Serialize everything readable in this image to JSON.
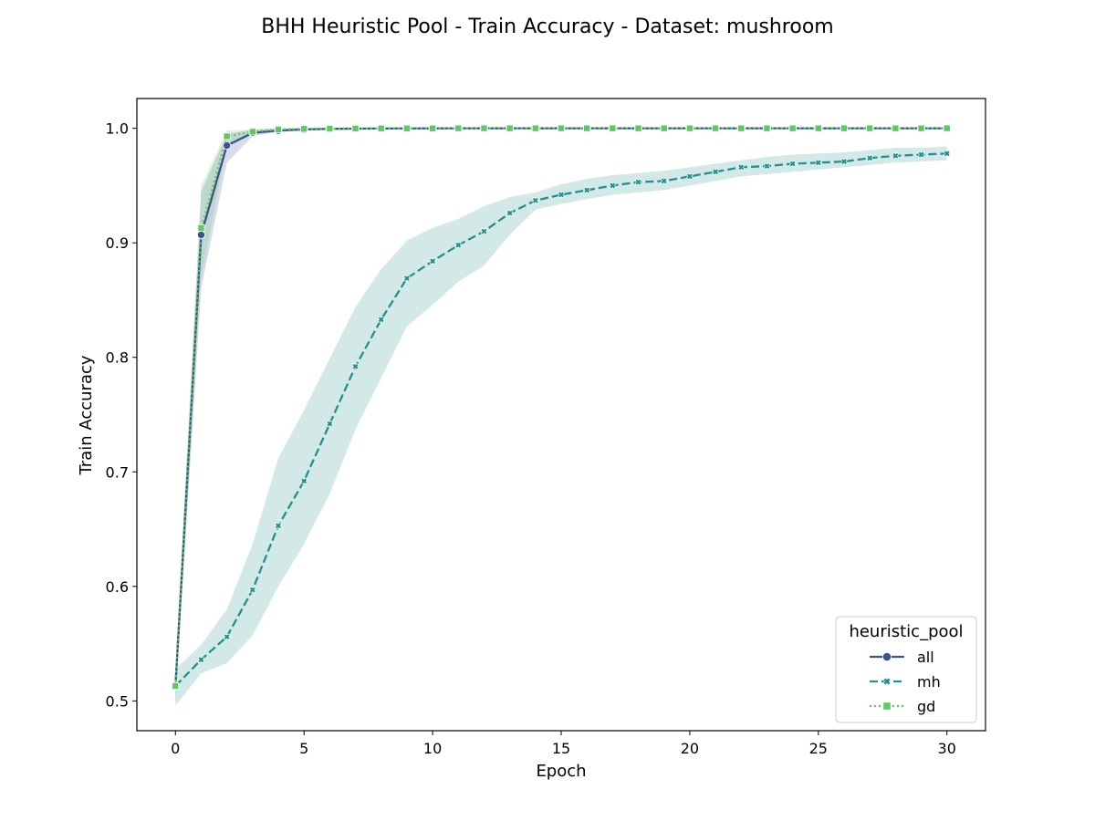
{
  "chart_data": {
    "type": "line",
    "title": "BHH Heuristic Pool - Train Accuracy - Dataset: mushroom",
    "xlabel": "Epoch",
    "ylabel": "Train Accuracy",
    "xlim": [
      -1.5,
      31.5
    ],
    "ylim": [
      0.474,
      1.026
    ],
    "xticks": [
      0,
      5,
      10,
      15,
      20,
      25,
      30
    ],
    "xtick_labels": [
      "0",
      "5",
      "10",
      "15",
      "20",
      "25",
      "30"
    ],
    "yticks": [
      0.5,
      0.6,
      0.7,
      0.8,
      0.9,
      1.0
    ],
    "ytick_labels": [
      "0.5",
      "0.6",
      "0.7",
      "0.8",
      "0.9",
      "1.0"
    ],
    "grid": false,
    "legend": {
      "title": "heuristic_pool",
      "position": "bottom-right"
    },
    "x": [
      0,
      1,
      2,
      3,
      4,
      5,
      6,
      7,
      8,
      9,
      10,
      11,
      12,
      13,
      14,
      15,
      16,
      17,
      18,
      19,
      20,
      21,
      22,
      23,
      24,
      25,
      26,
      27,
      28,
      29,
      30
    ],
    "series": [
      {
        "name": "all",
        "color": "#3b528b",
        "linestyle": "solid",
        "marker": "circle",
        "values": [
          0.513,
          0.907,
          0.985,
          0.996,
          0.998,
          0.999,
          0.9995,
          0.9997,
          0.9998,
          0.9999,
          0.9999,
          1.0,
          1.0,
          1.0,
          1.0,
          1.0,
          1.0,
          1.0,
          1.0,
          1.0,
          1.0,
          1.0,
          1.0,
          1.0,
          1.0,
          1.0,
          1.0,
          1.0,
          1.0,
          1.0,
          1.0
        ],
        "ci_lower": [
          0.5,
          0.86,
          0.97,
          0.993,
          0.997,
          0.998,
          0.999,
          0.9995,
          0.9996,
          0.9997,
          0.9998,
          0.9999,
          0.9999,
          0.9999,
          0.9999,
          0.9999,
          0.9999,
          0.9999,
          0.9999,
          0.9999,
          0.9999,
          0.9999,
          0.9999,
          0.9999,
          0.9999,
          0.9999,
          0.9999,
          0.9999,
          0.9999,
          0.9999,
          0.9999
        ],
        "ci_upper": [
          0.525,
          0.945,
          0.995,
          0.999,
          1.0,
          1.0,
          1.0,
          1.0,
          1.0,
          1.0,
          1.0,
          1.0,
          1.0,
          1.0,
          1.0,
          1.0,
          1.0,
          1.0,
          1.0,
          1.0,
          1.0,
          1.0,
          1.0,
          1.0,
          1.0,
          1.0,
          1.0,
          1.0,
          1.0,
          1.0,
          1.0
        ]
      },
      {
        "name": "mh",
        "color": "#21918c",
        "linestyle": "dashed",
        "marker": "x",
        "values": [
          0.513,
          0.536,
          0.556,
          0.597,
          0.653,
          0.692,
          0.742,
          0.792,
          0.833,
          0.869,
          0.884,
          0.898,
          0.91,
          0.926,
          0.937,
          0.942,
          0.946,
          0.95,
          0.953,
          0.954,
          0.958,
          0.962,
          0.966,
          0.967,
          0.969,
          0.97,
          0.971,
          0.974,
          0.976,
          0.977,
          0.978
        ],
        "ci_lower": [
          0.496,
          0.524,
          0.533,
          0.557,
          0.6,
          0.637,
          0.681,
          0.737,
          0.782,
          0.827,
          0.846,
          0.866,
          0.88,
          0.907,
          0.929,
          0.934,
          0.938,
          0.942,
          0.944,
          0.946,
          0.95,
          0.954,
          0.958,
          0.96,
          0.962,
          0.964,
          0.966,
          0.968,
          0.97,
          0.971,
          0.972
        ],
        "ci_upper": [
          0.528,
          0.549,
          0.58,
          0.637,
          0.712,
          0.754,
          0.799,
          0.844,
          0.877,
          0.902,
          0.913,
          0.921,
          0.932,
          0.94,
          0.944,
          0.951,
          0.956,
          0.959,
          0.961,
          0.963,
          0.966,
          0.969,
          0.972,
          0.975,
          0.977,
          0.978,
          0.979,
          0.981,
          0.983,
          0.983,
          0.984
        ]
      },
      {
        "name": "gd",
        "color": "#5ec962",
        "linestyle": "dotted",
        "marker": "square",
        "values": [
          0.513,
          0.913,
          0.993,
          0.997,
          0.999,
          0.9995,
          0.9997,
          0.9998,
          0.9999,
          0.9999,
          0.9999,
          1.0,
          1.0,
          1.0,
          1.0,
          1.0,
          1.0,
          1.0,
          1.0,
          1.0,
          1.0,
          1.0,
          1.0,
          1.0,
          1.0,
          1.0,
          1.0,
          1.0,
          1.0,
          1.0,
          1.0
        ],
        "ci_lower": [
          0.5,
          0.87,
          0.985,
          0.995,
          0.998,
          0.999,
          0.9993,
          0.9995,
          0.9996,
          0.9997,
          0.9998,
          0.9999,
          0.9999,
          0.9999,
          0.9999,
          0.9999,
          0.9999,
          0.9999,
          0.9999,
          0.9999,
          0.9999,
          0.9999,
          0.9999,
          0.9999,
          0.9999,
          0.9999,
          0.9999,
          0.9999,
          0.9999,
          0.9999,
          0.9999
        ],
        "ci_upper": [
          0.525,
          0.95,
          0.998,
          0.999,
          1.0,
          1.0,
          1.0,
          1.0,
          1.0,
          1.0,
          1.0,
          1.0,
          1.0,
          1.0,
          1.0,
          1.0,
          1.0,
          1.0,
          1.0,
          1.0,
          1.0,
          1.0,
          1.0,
          1.0,
          1.0,
          1.0,
          1.0,
          1.0,
          1.0,
          1.0,
          1.0
        ]
      }
    ]
  }
}
